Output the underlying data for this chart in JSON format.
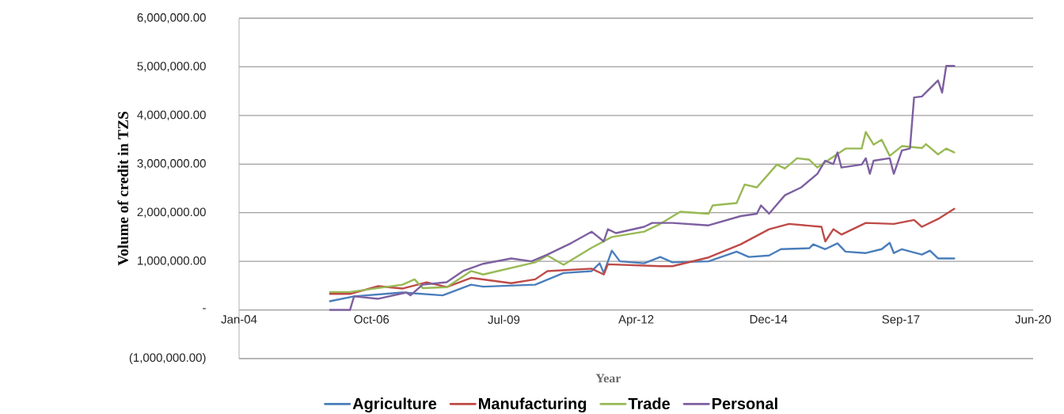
{
  "chart_data": {
    "type": "line",
    "xlabel": "Year",
    "ylabel": "Volume of credit in TZS",
    "xlim": [
      "2004-01-14",
      "2020-06-19"
    ],
    "xticks": [
      {
        "value": "2004-01-14",
        "label": "Jan-04"
      },
      {
        "value": "2006-10-11",
        "label": "Oct-06"
      },
      {
        "value": "2009-07-07",
        "label": "Jul-09"
      },
      {
        "value": "2012-04-02",
        "label": "Apr-12"
      },
      {
        "value": "2014-12-28",
        "label": "Dec-14"
      },
      {
        "value": "2017-09-23",
        "label": "Sep-17"
      },
      {
        "value": "2020-06-19",
        "label": "Jun-20"
      }
    ],
    "ylim": [
      -1000000,
      6000000
    ],
    "yticks": [
      {
        "value": -1000000,
        "label": "(1,000,000.00)"
      },
      {
        "value": 0,
        "label": "-"
      },
      {
        "value": 1000000,
        "label": "1,000,000.00"
      },
      {
        "value": 2000000,
        "label": "2,000,000.00"
      },
      {
        "value": 3000000,
        "label": "3,000,000.00"
      },
      {
        "value": 4000000,
        "label": "4,000,000.00"
      },
      {
        "value": 5000000,
        "label": "5,000,000.00"
      },
      {
        "value": 6000000,
        "label": "6,000,000.00"
      }
    ],
    "grid": "y",
    "legend": "bottom",
    "marker": "none",
    "line_style": "solid",
    "series": [
      {
        "name": "Agriculture",
        "color": "#4a7ebb",
        "x": [
          "2005-12",
          "2006-06",
          "2007-06",
          "2008-04",
          "2008-11",
          "2009-02",
          "2010-03",
          "2010-10",
          "2011-05",
          "2011-07",
          "2011-08",
          "2011-10",
          "2011-12",
          "2012-06",
          "2012-10",
          "2013-01",
          "2013-10",
          "2014-05",
          "2014-08",
          "2015-01",
          "2015-04",
          "2015-11",
          "2015-12",
          "2016-03",
          "2016-06",
          "2016-08",
          "2017-01",
          "2017-05",
          "2017-07",
          "2017-08",
          "2017-10",
          "2018-03",
          "2018-05",
          "2018-07",
          "2018-11"
        ],
        "values": [
          180000,
          280000,
          360000,
          300000,
          520000,
          480000,
          520000,
          760000,
          800000,
          960000,
          760000,
          1220000,
          1000000,
          960000,
          1090000,
          980000,
          1000000,
          1200000,
          1090000,
          1120000,
          1250000,
          1270000,
          1350000,
          1250000,
          1370000,
          1200000,
          1170000,
          1250000,
          1380000,
          1170000,
          1250000,
          1140000,
          1220000,
          1060000,
          1060000
        ]
      },
      {
        "name": "Manufacturing",
        "color": "#be4b48",
        "x": [
          "2005-12",
          "2006-05",
          "2006-12",
          "2007-06",
          "2007-12",
          "2008-05",
          "2008-11",
          "2009-09",
          "2010-03",
          "2010-06",
          "2011-05",
          "2011-08",
          "2011-09",
          "2012-10",
          "2013-01",
          "2013-10",
          "2014-06",
          "2015-01",
          "2015-06",
          "2016-02",
          "2016-03",
          "2016-05",
          "2016-07",
          "2017-01",
          "2017-08",
          "2018-01",
          "2018-03",
          "2018-07",
          "2018-11"
        ],
        "values": [
          330000,
          330000,
          490000,
          440000,
          570000,
          470000,
          660000,
          550000,
          630000,
          800000,
          850000,
          730000,
          940000,
          900000,
          900000,
          1080000,
          1350000,
          1660000,
          1770000,
          1710000,
          1410000,
          1660000,
          1550000,
          1790000,
          1770000,
          1850000,
          1710000,
          1870000,
          2080000
        ]
      },
      {
        "name": "Trade",
        "color": "#98b954",
        "x": [
          "2005-12",
          "2006-05",
          "2007-06",
          "2007-09",
          "2007-11",
          "2008-05",
          "2008-11",
          "2009-02",
          "2010-03",
          "2010-06",
          "2010-10",
          "2011-05",
          "2011-10",
          "2012-06",
          "2012-10",
          "2013-03",
          "2013-10",
          "2013-11",
          "2014-05",
          "2014-07",
          "2014-10",
          "2015-03",
          "2015-05",
          "2015-08",
          "2015-11",
          "2016-01",
          "2016-08",
          "2016-12",
          "2017-01",
          "2017-03",
          "2017-05",
          "2017-07",
          "2017-10",
          "2018-03",
          "2018-04",
          "2018-07",
          "2018-09",
          "2018-11"
        ],
        "values": [
          370000,
          370000,
          520000,
          630000,
          450000,
          470000,
          800000,
          730000,
          980000,
          1120000,
          930000,
          1280000,
          1500000,
          1610000,
          1770000,
          2020000,
          1980000,
          2150000,
          2200000,
          2580000,
          2520000,
          2990000,
          2910000,
          3120000,
          3090000,
          2930000,
          3320000,
          3320000,
          3660000,
          3400000,
          3500000,
          3170000,
          3370000,
          3330000,
          3410000,
          3200000,
          3320000,
          3240000
        ]
      },
      {
        "name": "Personal",
        "color": "#7d60a0",
        "x": [
          "2005-12",
          "2006-05",
          "2006-06",
          "2006-12",
          "2007-07",
          "2007-08",
          "2007-11",
          "2008-05",
          "2008-09",
          "2009-02",
          "2009-09",
          "2010-02",
          "2010-06",
          "2010-12",
          "2011-05",
          "2011-08",
          "2011-09",
          "2011-11",
          "2012-06",
          "2012-08",
          "2013-01",
          "2013-10",
          "2014-06",
          "2014-10",
          "2014-11",
          "2015-01",
          "2015-05",
          "2015-09",
          "2016-01",
          "2016-03",
          "2016-05",
          "2016-06",
          "2016-07",
          "2016-12",
          "2017-01",
          "2017-02",
          "2017-03",
          "2017-07",
          "2017-08",
          "2017-10",
          "2017-12",
          "2018-01",
          "2018-03",
          "2018-07",
          "2018-08",
          "2018-09",
          "2018-11"
        ],
        "values": [
          0,
          0,
          280000,
          230000,
          360000,
          300000,
          520000,
          570000,
          800000,
          950000,
          1060000,
          1000000,
          1140000,
          1380000,
          1610000,
          1410000,
          1660000,
          1580000,
          1710000,
          1790000,
          1790000,
          1740000,
          1930000,
          1980000,
          2150000,
          1980000,
          2360000,
          2520000,
          2800000,
          3070000,
          3000000,
          3240000,
          2930000,
          2990000,
          3120000,
          2800000,
          3070000,
          3120000,
          2800000,
          3280000,
          3320000,
          4370000,
          4390000,
          4720000,
          4470000,
          5020000,
          5020000
        ]
      }
    ]
  }
}
